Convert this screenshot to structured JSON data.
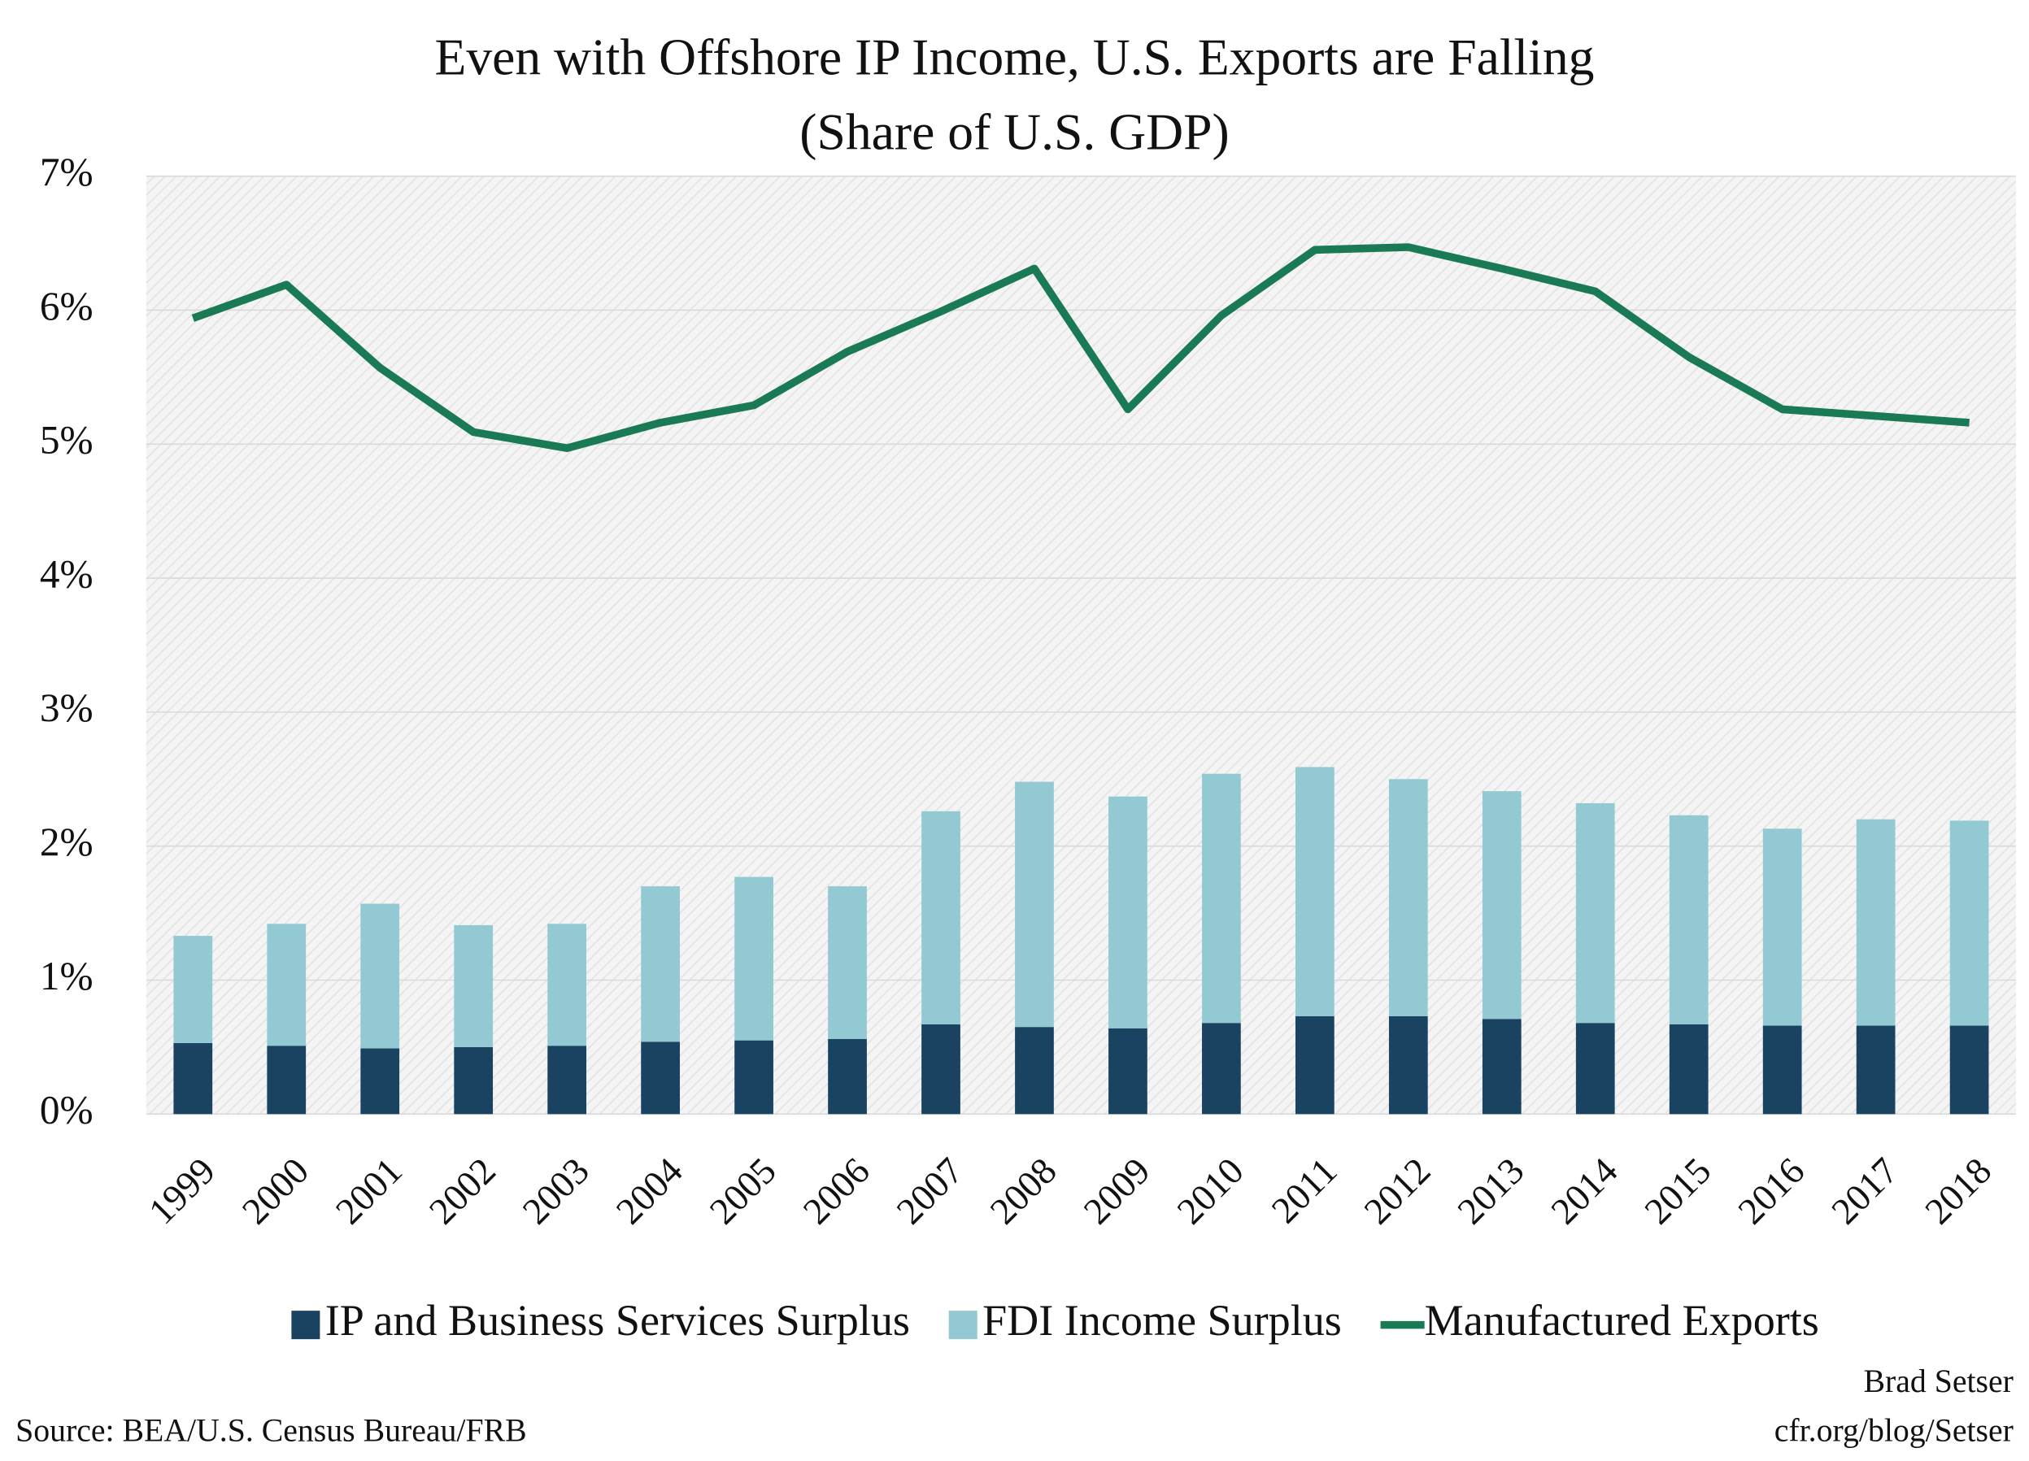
{
  "chart_data": {
    "type": "bar",
    "stacked": true,
    "title": "Even with Offshore IP Income, U.S. Exports are Falling",
    "subtitle": "(Share of U.S. GDP)",
    "categories": [
      "1999",
      "2000",
      "2001",
      "2002",
      "2003",
      "2004",
      "2005",
      "2006",
      "2007",
      "2008",
      "2009",
      "2010",
      "2011",
      "2012",
      "2013",
      "2014",
      "2015",
      "2016",
      "2017",
      "2018"
    ],
    "series": [
      {
        "name": "IP and Business Services Surplus",
        "type": "bar",
        "color": "#1a4361",
        "values": [
          0.53,
          0.51,
          0.49,
          0.5,
          0.51,
          0.54,
          0.55,
          0.56,
          0.67,
          0.65,
          0.64,
          0.68,
          0.73,
          0.73,
          0.71,
          0.68,
          0.67,
          0.66,
          0.66,
          0.66
        ]
      },
      {
        "name": "FDI Income Surplus",
        "type": "bar",
        "color": "#93c9d3",
        "values": [
          0.8,
          0.91,
          1.08,
          0.91,
          0.91,
          1.16,
          1.22,
          1.14,
          1.59,
          1.83,
          1.73,
          1.86,
          1.86,
          1.77,
          1.7,
          1.64,
          1.56,
          1.47,
          1.54,
          1.53
        ]
      },
      {
        "name": "Manufactured Exports",
        "type": "line",
        "color": "#1a7a55",
        "values": [
          5.94,
          6.19,
          5.57,
          5.09,
          4.97,
          5.16,
          5.29,
          5.69,
          5.99,
          6.31,
          5.26,
          5.96,
          6.45,
          6.47,
          6.31,
          6.14,
          5.65,
          5.26,
          5.21,
          5.16
        ]
      }
    ],
    "ylim": [
      0,
      7
    ],
    "yticks": [
      {
        "value": 0,
        "label": "0%"
      },
      {
        "value": 1,
        "label": "1%"
      },
      {
        "value": 2,
        "label": "2%"
      },
      {
        "value": 3,
        "label": "3%"
      },
      {
        "value": 4,
        "label": "4%"
      },
      {
        "value": 5,
        "label": "5%"
      },
      {
        "value": 6,
        "label": "6%"
      },
      {
        "value": 7,
        "label": "7%"
      }
    ],
    "grid": true,
    "legend": "bottom",
    "source": "Source: BEA/U.S. Census Bureau/FRB",
    "credit": [
      "Brad Setser",
      "cfr.org/blog/Setser"
    ]
  }
}
